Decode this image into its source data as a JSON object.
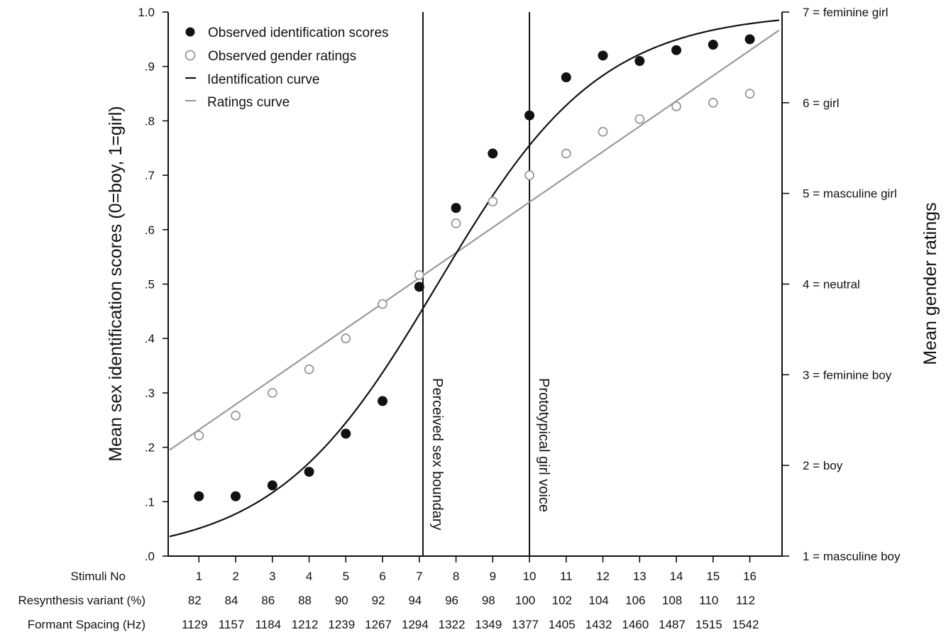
{
  "chart_data": {
    "type": "scatter",
    "ylabel_left": "Mean sex identification scores (0=boy, 1=girl)",
    "ylabel_right": "Mean gender ratings",
    "ylim_left": [
      0,
      1
    ],
    "ylim_right": [
      1,
      7
    ],
    "y_tick_labels": [
      ".0",
      ".1",
      ".2",
      ".3",
      ".4",
      ".5",
      ".6",
      ".7",
      ".8",
      ".9",
      "1.0"
    ],
    "right_tick_labels": [
      "1 = masculine boy",
      "2 = boy",
      "3  = feminine boy",
      "4 = neutral",
      "5 = masculine girl",
      "6 = girl",
      "7 = feminine girl"
    ],
    "x_rows": [
      {
        "label": "Stimuli No",
        "values": [
          "1",
          "2",
          "3",
          "4",
          "5",
          "6",
          "7",
          "8",
          "9",
          "10",
          "11",
          "12",
          "13",
          "14",
          "15",
          "16"
        ]
      },
      {
        "label": "Resynthesis variant (%)",
        "values": [
          "82",
          "84",
          "86",
          "88",
          "90",
          "92",
          "94",
          "96",
          "98",
          "100",
          "102",
          "104",
          "106",
          "108",
          "110",
          "112"
        ]
      },
      {
        "label": "Formant Spacing (Hz)",
        "values": [
          "1129",
          "1157",
          "1184",
          "1212",
          "1239",
          "1267",
          "1294",
          "1322",
          "1349",
          "1377",
          "1405",
          "1432",
          "1460",
          "1487",
          "1515",
          "1542"
        ]
      }
    ],
    "legend": [
      {
        "label": "Observed identification scores",
        "marker": "filled-circle",
        "color": "#111111"
      },
      {
        "label": "Observed gender ratings",
        "marker": "open-circle",
        "color": "#999999"
      },
      {
        "label": "Identification curve",
        "marker": "line",
        "color": "#111111"
      },
      {
        "label": "Ratings curve",
        "marker": "line",
        "color": "#999999"
      }
    ],
    "series": [
      {
        "name": "Observed identification scores",
        "x": [
          1,
          2,
          3,
          4,
          5,
          6,
          7,
          8,
          9,
          10,
          11,
          12,
          13,
          14,
          15,
          16
        ],
        "values": [
          0.11,
          0.11,
          0.13,
          0.155,
          0.225,
          0.285,
          0.495,
          0.64,
          0.74,
          0.81,
          0.88,
          0.92,
          0.91,
          0.93,
          0.94,
          0.95
        ]
      },
      {
        "name": "Observed gender ratings",
        "x": [
          1,
          2,
          3,
          4,
          5,
          6,
          7,
          8,
          9,
          10,
          11,
          12,
          13,
          14,
          15,
          16
        ],
        "values": [
          2.33,
          2.55,
          2.8,
          3.06,
          3.4,
          3.78,
          4.1,
          4.67,
          4.91,
          5.2,
          5.44,
          5.68,
          5.82,
          5.96,
          6.0,
          6.1
        ]
      }
    ],
    "curves": [
      {
        "name": "Identification curve",
        "x_range": [
          0.2,
          16.8
        ],
        "logistic": {
          "midpoint": 7.5,
          "slope": 0.45
        }
      },
      {
        "name": "Ratings curve",
        "x_range": [
          0.2,
          16.8
        ],
        "linear": {
          "y_at_start": 2.17,
          "y_at_end": 6.8
        }
      }
    ],
    "annotations": [
      {
        "text": "Perceived sex boundary",
        "x": 7.1
      },
      {
        "text": "Prototypical girl voice",
        "x": 10
      }
    ]
  },
  "colors": {
    "dark": "#111111",
    "gray": "#999999"
  }
}
